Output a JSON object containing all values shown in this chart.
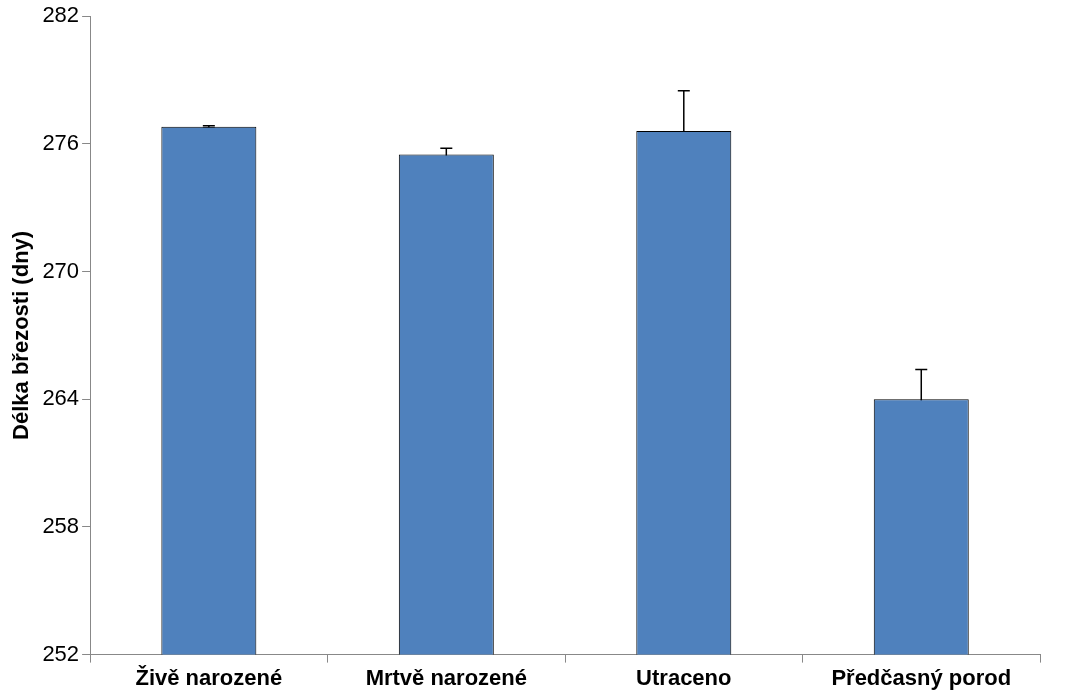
{
  "chart_data": {
    "type": "bar",
    "ylabel": "Délka březosti (dny)",
    "categories": [
      "Živě narozené",
      "Mrtvě narozené",
      "Utraceno",
      "Předčasný porod"
    ],
    "values": [
      276.8,
      275.5,
      276.6,
      264.0
    ],
    "errors": [
      0.05,
      0.3,
      1.9,
      1.4
    ],
    "color": "#4f81bd",
    "ylim": [
      252,
      282
    ],
    "yticks": [
      252,
      258,
      264,
      270,
      276,
      282
    ],
    "grid": false,
    "legend": false
  }
}
